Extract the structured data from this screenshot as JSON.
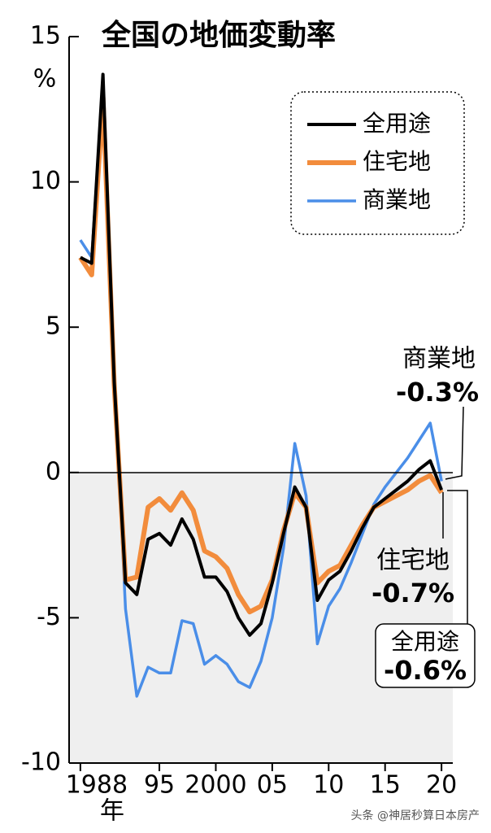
{
  "chart_data": {
    "type": "line",
    "title": "全国の地価変動率",
    "y_unit": "%",
    "x_unit": "年",
    "x": [
      1988,
      1989,
      1990,
      1991,
      1992,
      1993,
      1994,
      1995,
      1996,
      1997,
      1998,
      1999,
      2000,
      2001,
      2002,
      2003,
      2004,
      2005,
      2006,
      2007,
      2008,
      2009,
      2010,
      2011,
      2012,
      2013,
      2014,
      2015,
      2016,
      2017,
      2018,
      2019,
      2020
    ],
    "series": [
      {
        "name": "商業地",
        "color": "#4a8ee8",
        "values": [
          8.0,
          7.4,
          13.2,
          3.4,
          -4.7,
          -7.7,
          -6.7,
          -6.9,
          -6.9,
          -5.1,
          -5.2,
          -6.6,
          -6.3,
          -6.6,
          -7.2,
          -7.4,
          -6.5,
          -5.0,
          -2.6,
          1.0,
          -0.8,
          -5.9,
          -4.6,
          -4.0,
          -3.1,
          -2.1,
          -1.1,
          -0.5,
          0.0,
          0.5,
          1.1,
          1.7,
          -0.3
        ]
      },
      {
        "name": "住宅地",
        "color": "#f28c3c",
        "values": [
          7.4,
          6.8,
          12.9,
          3.0,
          -3.7,
          -3.6,
          -1.2,
          -0.9,
          -1.3,
          -0.7,
          -1.3,
          -2.7,
          -2.9,
          -3.3,
          -4.2,
          -4.8,
          -4.6,
          -3.7,
          -2.0,
          -0.7,
          -1.2,
          -3.8,
          -3.4,
          -3.2,
          -2.5,
          -1.8,
          -1.2,
          -1.0,
          -0.8,
          -0.6,
          -0.3,
          -0.1,
          -0.7
        ]
      },
      {
        "name": "全用途",
        "color": "#000000",
        "values": [
          7.4,
          7.2,
          13.7,
          3.1,
          -3.8,
          -4.2,
          -2.3,
          -2.1,
          -2.5,
          -1.6,
          -2.3,
          -3.6,
          -3.6,
          -4.1,
          -5.0,
          -5.6,
          -5.2,
          -3.8,
          -2.1,
          -0.5,
          -1.2,
          -4.4,
          -3.7,
          -3.4,
          -2.7,
          -1.9,
          -1.2,
          -0.9,
          -0.6,
          -0.3,
          0.1,
          0.4,
          -0.6
        ]
      }
    ],
    "legend_order": [
      2,
      1,
      0
    ],
    "xlim": [
      1987,
      2021
    ],
    "xticks": [
      {
        "value": 1988,
        "label": "1988"
      },
      {
        "value": 1995,
        "label": "95"
      },
      2000,
      {
        "value": 2005,
        "label": "05"
      },
      {
        "value": 2010,
        "label": "10"
      },
      {
        "value": 2015,
        "label": "15"
      },
      {
        "value": 2020,
        "label": "20"
      }
    ],
    "ylim": [
      -10,
      15
    ],
    "yticks": [
      -10,
      -5,
      0,
      5,
      10,
      15
    ],
    "annotations": [
      {
        "label": "商業地",
        "value_label": "-0.3%"
      },
      {
        "label": "住宅地",
        "value_label": "-0.7%"
      },
      {
        "label": "全用途",
        "value_label": "-0.6%"
      }
    ]
  },
  "watermark": "头条 @神居秒算日本房产"
}
